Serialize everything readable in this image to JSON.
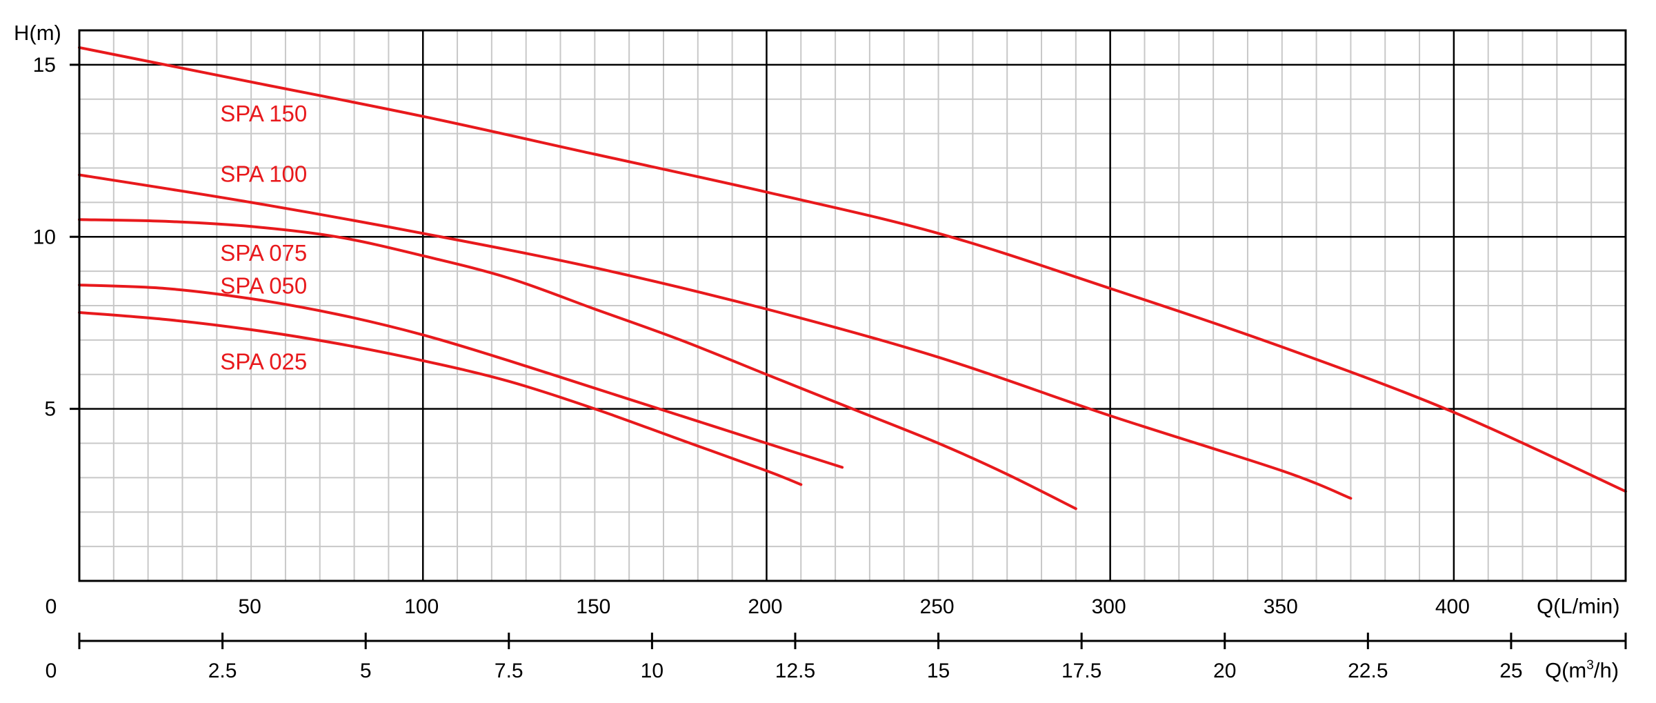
{
  "chart_data": {
    "type": "line",
    "ylabel": "H(m)",
    "xlabel": "Q(L/min)",
    "x2label_main": "Q(m",
    "x2label_sup": "3",
    "x2label_tail": "/h)",
    "xlim": [
      0,
      450
    ],
    "ylim": [
      0,
      16
    ],
    "x2lim": [
      0,
      27
    ],
    "x_ticks": [
      50,
      100,
      150,
      200,
      250,
      300,
      350,
      400
    ],
    "x_tick_labels": [
      "50",
      "100",
      "150",
      "200",
      "250",
      "300",
      "350",
      "400"
    ],
    "x_origin_label": "0",
    "x2_ticks": [
      2.5,
      5,
      7.5,
      10,
      12.5,
      15,
      17.5,
      20,
      22.5,
      25
    ],
    "x2_tick_labels": [
      "2.5",
      "5",
      "7.5",
      "10",
      "12.5",
      "15",
      "17.5",
      "20",
      "22.5",
      "25"
    ],
    "x2_origin_label": "0",
    "y_ticks": [
      5,
      10,
      15
    ],
    "y_tick_labels": [
      "5",
      "10",
      "15"
    ],
    "grid": true,
    "line_color": "#e8191c",
    "series": [
      {
        "name": "SPA 150",
        "x": [
          0,
          50,
          100,
          150,
          200,
          250,
          300,
          350,
          400,
          450
        ],
        "y": [
          15.5,
          14.5,
          13.5,
          12.4,
          11.3,
          10.1,
          8.5,
          6.8,
          4.9,
          2.6
        ]
      },
      {
        "name": "SPA 100",
        "x": [
          0,
          50,
          100,
          150,
          200,
          250,
          300,
          350,
          370
        ],
        "y": [
          11.8,
          11.0,
          10.1,
          9.1,
          7.9,
          6.5,
          4.8,
          3.2,
          2.4
        ]
      },
      {
        "name": "SPA 075",
        "x": [
          0,
          25,
          50,
          75,
          100,
          125,
          150,
          175,
          200,
          225,
          250,
          270,
          290
        ],
        "y": [
          10.5,
          10.45,
          10.3,
          10.0,
          9.45,
          8.8,
          7.9,
          7.0,
          6.0,
          5.0,
          4.0,
          3.1,
          2.1
        ]
      },
      {
        "name": "SPA 050",
        "x": [
          0,
          25,
          50,
          75,
          100,
          125,
          150,
          175,
          200,
          222
        ],
        "y": [
          8.6,
          8.5,
          8.2,
          7.75,
          7.15,
          6.4,
          5.6,
          4.8,
          4.0,
          3.3
        ]
      },
      {
        "name": "SPA 025",
        "x": [
          0,
          25,
          50,
          75,
          100,
          125,
          150,
          175,
          200,
          210
        ],
        "y": [
          7.8,
          7.6,
          7.3,
          6.9,
          6.4,
          5.8,
          5.0,
          4.1,
          3.2,
          2.8
        ]
      }
    ]
  }
}
